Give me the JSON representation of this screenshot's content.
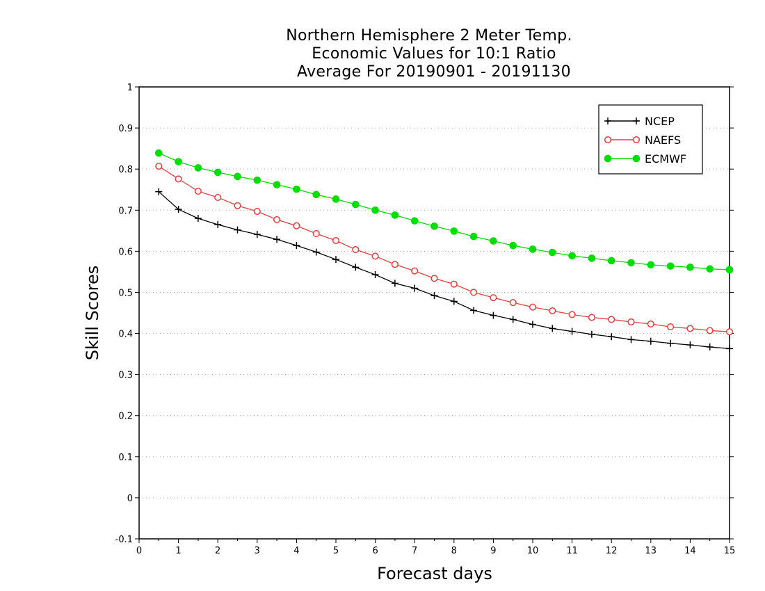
{
  "chart_data": {
    "type": "line",
    "title": [
      "Northern Hemisphere 2 Meter Temp.",
      "Economic Values for 10:1 Ratio",
      "Average For 20190901 - 20191130"
    ],
    "xlabel": "Forecast days",
    "ylabel": "Skill Scores",
    "xlim": [
      0,
      15
    ],
    "ylim": [
      -0.1,
      1
    ],
    "xticks": [
      0,
      1,
      2,
      3,
      4,
      5,
      6,
      7,
      8,
      9,
      10,
      11,
      12,
      13,
      14,
      15
    ],
    "xtick_labels": [
      "0",
      "1",
      "2",
      "3",
      "4",
      "5",
      "6",
      "7",
      "8",
      "9",
      "10",
      "11",
      "12",
      "13",
      "14",
      "15"
    ],
    "yticks": [
      -0.1,
      0,
      0.1,
      0.2,
      0.3,
      0.4,
      0.5,
      0.6,
      0.7,
      0.8,
      0.9,
      1
    ],
    "ytick_labels": [
      "-0.1",
      "0",
      "0.1",
      "0.2",
      "0.3",
      "0.4",
      "0.5",
      "0.6",
      "0.7",
      "0.8",
      "0.9",
      "1"
    ],
    "grid": "horizontal dotted",
    "legend_position": "top-right",
    "x": [
      0.5,
      1,
      1.5,
      2,
      2.5,
      3,
      3.5,
      4,
      4.5,
      5,
      5.5,
      6,
      6.5,
      7,
      7.5,
      8,
      8.5,
      9,
      9.5,
      10,
      10.5,
      11,
      11.5,
      12,
      12.5,
      13,
      13.5,
      14,
      14.5,
      15
    ],
    "series": [
      {
        "name": "NCEP",
        "color": "#000000",
        "marker": "plus",
        "values": [
          0.745,
          0.702,
          0.68,
          0.665,
          0.652,
          0.641,
          0.629,
          0.614,
          0.598,
          0.58,
          0.561,
          0.543,
          0.522,
          0.51,
          0.492,
          0.478,
          0.456,
          0.444,
          0.434,
          0.422,
          0.412,
          0.405,
          0.398,
          0.392,
          0.385,
          0.381,
          0.376,
          0.372,
          0.367,
          0.363
        ]
      },
      {
        "name": "NAEFS",
        "color": "#e83c3c",
        "marker": "open-circle",
        "values": [
          0.807,
          0.776,
          0.746,
          0.731,
          0.711,
          0.697,
          0.677,
          0.662,
          0.643,
          0.626,
          0.604,
          0.588,
          0.568,
          0.552,
          0.534,
          0.52,
          0.5,
          0.487,
          0.475,
          0.464,
          0.455,
          0.446,
          0.439,
          0.434,
          0.428,
          0.423,
          0.416,
          0.412,
          0.407,
          0.404
        ]
      },
      {
        "name": "ECMWF",
        "color": "#00dd00",
        "marker": "filled-circle",
        "values": [
          0.839,
          0.818,
          0.803,
          0.792,
          0.782,
          0.773,
          0.762,
          0.751,
          0.738,
          0.727,
          0.714,
          0.7,
          0.688,
          0.674,
          0.661,
          0.649,
          0.636,
          0.625,
          0.614,
          0.605,
          0.597,
          0.589,
          0.583,
          0.577,
          0.572,
          0.567,
          0.564,
          0.561,
          0.557,
          0.555
        ]
      }
    ]
  }
}
